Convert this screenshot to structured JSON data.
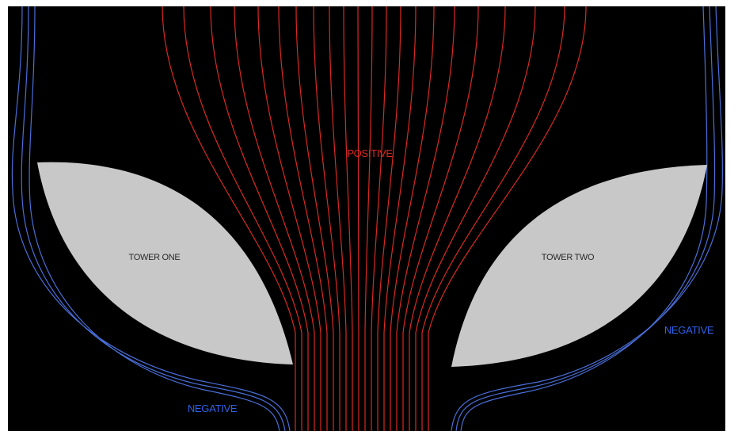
{
  "labels": {
    "positive": "POSITIVE",
    "tower_one": "TOWER ONE",
    "tower_two": "TOWER TWO",
    "negative_left": "NEGATIVE",
    "negative_right": "NEGATIVE"
  },
  "colors": {
    "background": "#000000",
    "tower_fill": "#c8c8c8",
    "positive_lines": "#d92a22",
    "negative_lines": "#4a6fd8",
    "positive_text": "#d92a22",
    "negative_text": "#2f63e8",
    "tower_text": "#2a2a2a"
  }
}
